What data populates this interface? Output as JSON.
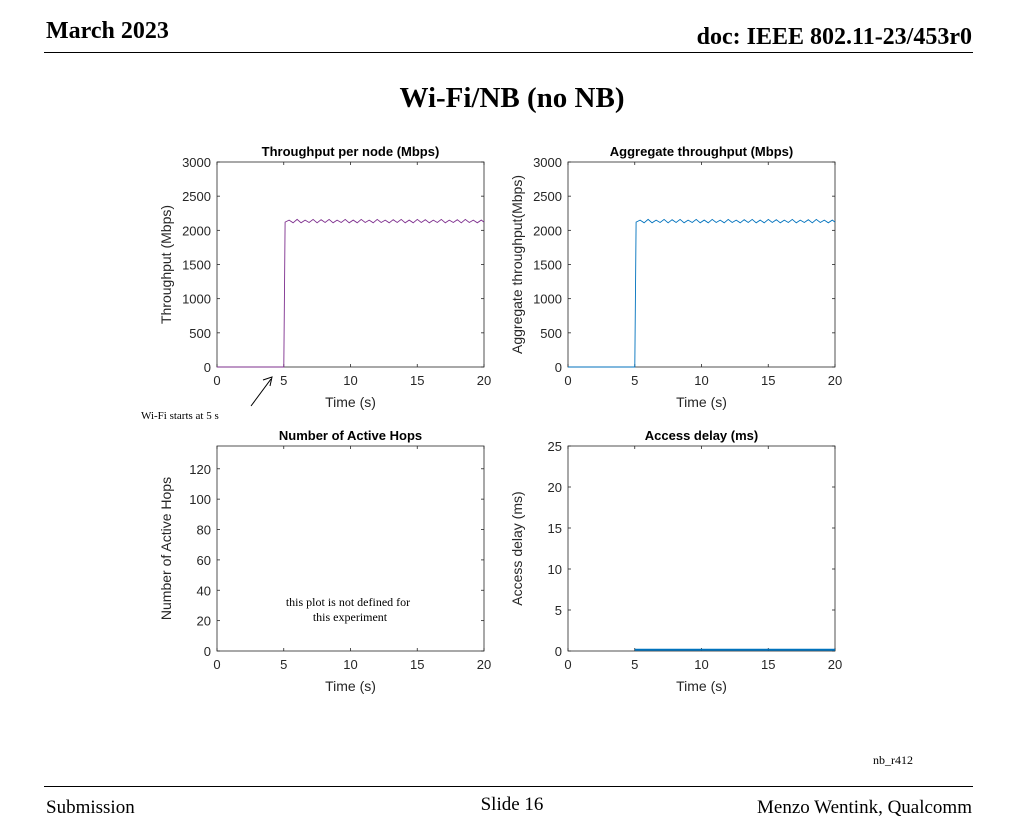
{
  "header": {
    "date": "March 2023",
    "doc": "doc: IEEE 802.11-23/453r0"
  },
  "slide_title": "Wi-Fi/NB (no NB)",
  "annotation": "Wi-Fi starts at 5 s",
  "note_line1": "this plot is not defined for",
  "note_line2": "this experiment",
  "run_id": "nb_r412",
  "footer": {
    "left": "Submission",
    "center": "Slide 16",
    "right": "Menzo Wentink, Qualcomm"
  },
  "colors": {
    "purple": "#7e2f8e",
    "blue": "#0072bd"
  },
  "chart_data": [
    {
      "id": "tp-node",
      "type": "line",
      "title": "Throughput per node (Mbps)",
      "xlabel": "Time (s)",
      "ylabel": "Throughput (Mbps)",
      "xlim": [
        0,
        20
      ],
      "ylim": [
        0,
        3000
      ],
      "xticks": [
        0,
        5,
        10,
        15,
        20
      ],
      "yticks": [
        0,
        500,
        1000,
        1500,
        2000,
        2500,
        3000
      ],
      "color": "#7e2f8e",
      "series": [
        {
          "x": [
            0,
            5.0,
            5.1,
            5.4,
            5.7,
            6.0,
            6.3,
            6.6,
            6.9,
            7.2,
            7.5,
            7.8,
            8.1,
            8.4,
            8.7,
            9.0,
            9.3,
            9.6,
            9.9,
            10.2,
            10.5,
            10.8,
            11.1,
            11.4,
            11.7,
            12.0,
            12.3,
            12.6,
            12.9,
            13.2,
            13.5,
            13.8,
            14.1,
            14.4,
            14.7,
            15.0,
            15.3,
            15.6,
            15.9,
            16.2,
            16.5,
            16.8,
            17.1,
            17.4,
            17.7,
            18.0,
            18.3,
            18.6,
            18.9,
            19.2,
            19.5,
            19.8,
            20
          ],
          "y": [
            0,
            0,
            2120,
            2150,
            2110,
            2160,
            2110,
            2150,
            2115,
            2160,
            2110,
            2155,
            2115,
            2160,
            2110,
            2150,
            2115,
            2160,
            2110,
            2150,
            2110,
            2160,
            2115,
            2150,
            2110,
            2160,
            2115,
            2150,
            2110,
            2155,
            2115,
            2160,
            2110,
            2150,
            2110,
            2160,
            2115,
            2155,
            2110,
            2150,
            2115,
            2160,
            2110,
            2150,
            2115,
            2155,
            2110,
            2160,
            2115,
            2150,
            2110,
            2150,
            2120
          ]
        }
      ]
    },
    {
      "id": "tp-agg",
      "type": "line",
      "title": "Aggregate throughput (Mbps)",
      "xlabel": "Time (s)",
      "ylabel": "Aggregate throughput(Mbps)",
      "xlim": [
        0,
        20
      ],
      "ylim": [
        0,
        3000
      ],
      "xticks": [
        0,
        5,
        10,
        15,
        20
      ],
      "yticks": [
        0,
        500,
        1000,
        1500,
        2000,
        2500,
        3000
      ],
      "color": "#0072bd",
      "series": [
        {
          "x": [
            0,
            5.0,
            5.1,
            5.4,
            5.7,
            6.0,
            6.3,
            6.6,
            6.9,
            7.2,
            7.5,
            7.8,
            8.1,
            8.4,
            8.7,
            9.0,
            9.3,
            9.6,
            9.9,
            10.2,
            10.5,
            10.8,
            11.1,
            11.4,
            11.7,
            12.0,
            12.3,
            12.6,
            12.9,
            13.2,
            13.5,
            13.8,
            14.1,
            14.4,
            14.7,
            15.0,
            15.3,
            15.6,
            15.9,
            16.2,
            16.5,
            16.8,
            17.1,
            17.4,
            17.7,
            18.0,
            18.3,
            18.6,
            18.9,
            19.2,
            19.5,
            19.8,
            20
          ],
          "y": [
            0,
            0,
            2120,
            2150,
            2110,
            2160,
            2110,
            2150,
            2115,
            2160,
            2110,
            2155,
            2115,
            2160,
            2110,
            2150,
            2115,
            2160,
            2110,
            2150,
            2110,
            2160,
            2115,
            2150,
            2110,
            2160,
            2115,
            2150,
            2110,
            2155,
            2115,
            2160,
            2110,
            2150,
            2110,
            2160,
            2115,
            2155,
            2110,
            2150,
            2115,
            2160,
            2110,
            2150,
            2115,
            2155,
            2110,
            2160,
            2115,
            2150,
            2110,
            2150,
            2120
          ]
        }
      ]
    },
    {
      "id": "hops",
      "type": "line",
      "title": "Number of Active Hops",
      "xlabel": "Time (s)",
      "ylabel": "Number of Active Hops",
      "xlim": [
        0,
        20
      ],
      "ylim": [
        0,
        135
      ],
      "xticks": [
        0,
        5,
        10,
        15,
        20
      ],
      "yticks": [
        0,
        20,
        40,
        60,
        80,
        100,
        120
      ],
      "color": "#0072bd",
      "series": []
    },
    {
      "id": "delay",
      "type": "line",
      "title": "Access delay (ms)",
      "xlabel": "Time (s)",
      "ylabel": "Access delay (ms)",
      "xlim": [
        0,
        20
      ],
      "ylim": [
        0,
        25
      ],
      "xticks": [
        0,
        5,
        10,
        15,
        20
      ],
      "yticks": [
        0,
        5,
        10,
        15,
        20,
        25
      ],
      "color": "#0072bd",
      "series": [
        {
          "x": [
            5,
            20
          ],
          "y": [
            0.15,
            0.15
          ]
        }
      ]
    }
  ]
}
